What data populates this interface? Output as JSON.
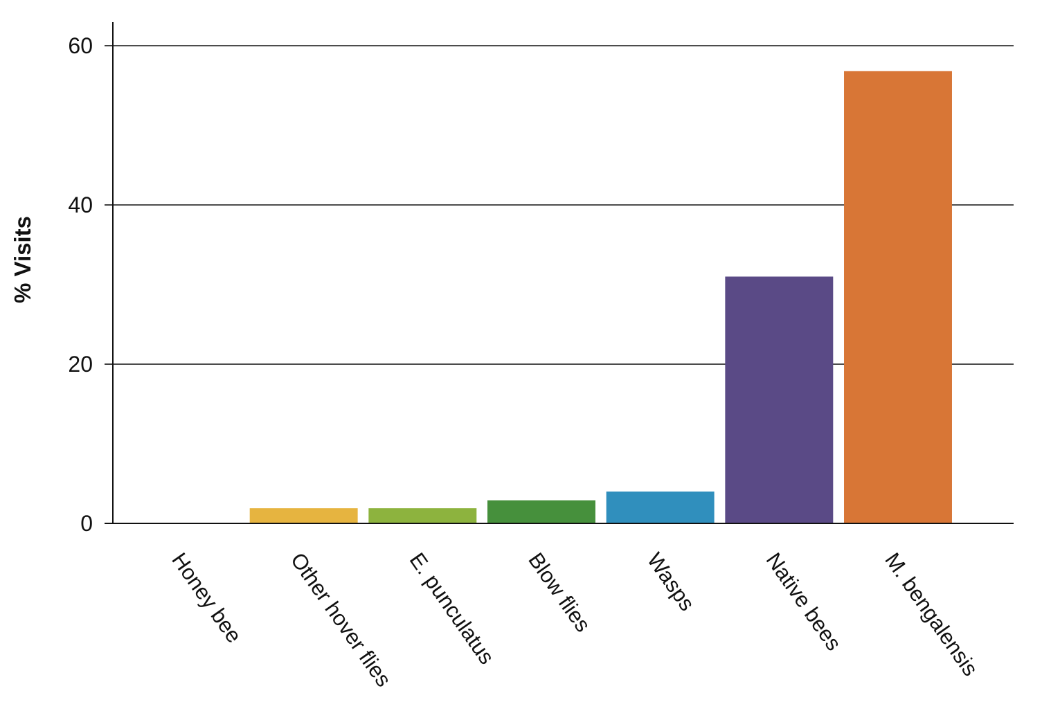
{
  "chart_data": {
    "type": "bar",
    "title": "",
    "xlabel": "",
    "ylabel": "% Visits",
    "ylim": [
      0,
      63
    ],
    "yticks": [
      0,
      20,
      40,
      60
    ],
    "grid": true,
    "categories": [
      "Honey bee",
      "Other hover flies",
      "E. punculatus",
      "Blow flies",
      "Wasps",
      "Native bees",
      "M. bengalensis"
    ],
    "values": [
      0,
      1.9,
      1.9,
      2.9,
      4.0,
      31.0,
      56.8
    ],
    "colors": [
      "#e6b440",
      "#e6b440",
      "#8db33e",
      "#46903c",
      "#308fbd",
      "#5a4a86",
      "#d87636"
    ]
  }
}
